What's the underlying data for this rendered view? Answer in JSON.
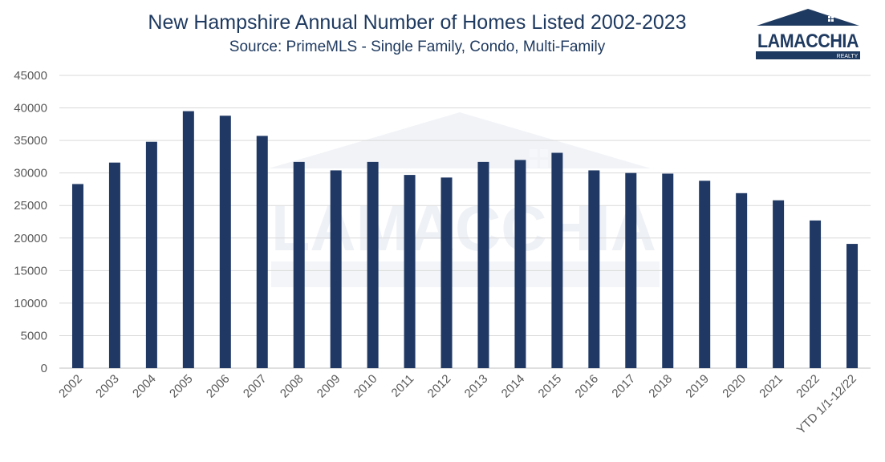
{
  "title": "New Hampshire Annual Number of Homes Listed 2002-2023",
  "subtitle": "Source: PrimeMLS - Single Family, Condo, Multi-Family",
  "logo": {
    "name": "LAMACCHIA",
    "sub": "REALTY"
  },
  "colors": {
    "bar": "#1f3864",
    "title": "#1f3a60"
  },
  "chart_data": {
    "type": "bar",
    "title": "New Hampshire Annual Number of Homes Listed 2002-2023",
    "subtitle": "Source: PrimeMLS - Single Family, Condo, Multi-Family",
    "xlabel": "",
    "ylabel": "",
    "ylim": [
      0,
      45000
    ],
    "yticks": [
      0,
      5000,
      10000,
      15000,
      20000,
      25000,
      30000,
      35000,
      40000,
      45000
    ],
    "grid": true,
    "categories": [
      "2002",
      "2003",
      "2004",
      "2005",
      "2006",
      "2007",
      "2008",
      "2009",
      "2010",
      "2011",
      "2012",
      "2013",
      "2014",
      "2015",
      "2016",
      "2017",
      "2018",
      "2019",
      "2020",
      "2021",
      "2022",
      "YTD 1/1-12/22"
    ],
    "values": [
      28300,
      31600,
      34800,
      39500,
      38800,
      35700,
      31700,
      30400,
      31700,
      29700,
      29300,
      31700,
      32000,
      33100,
      30400,
      30000,
      29900,
      28800,
      26900,
      25800,
      22700,
      19100
    ]
  }
}
